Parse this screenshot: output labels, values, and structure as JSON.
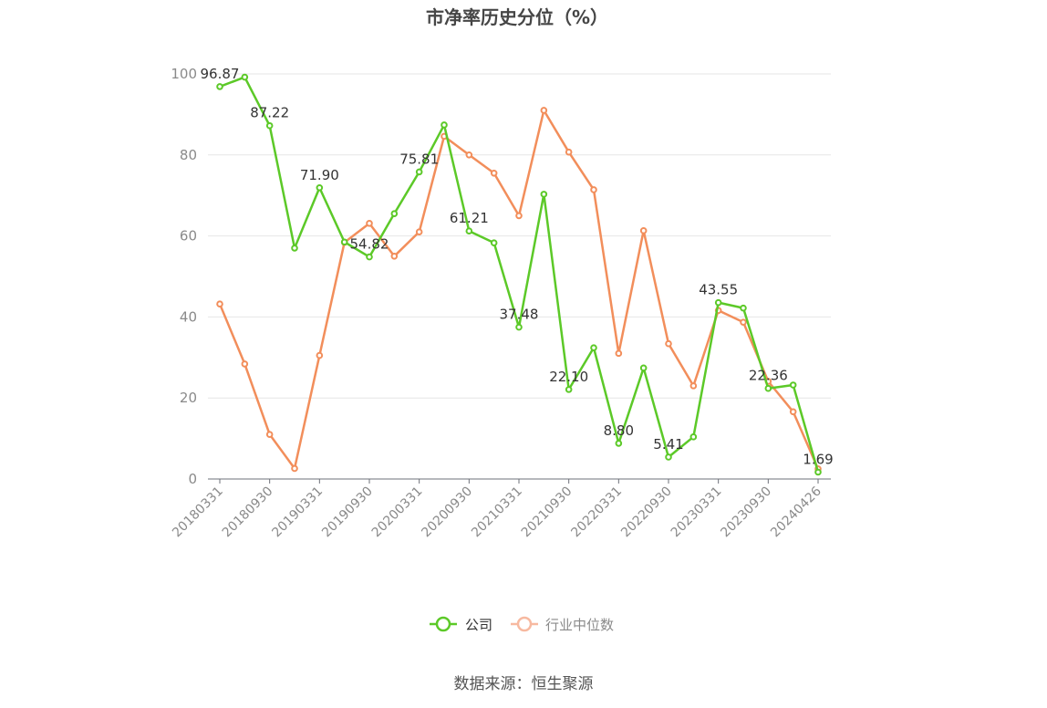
{
  "chart_data": {
    "type": "line",
    "title": "市净率历史分位（%）",
    "source": "数据来源：恒生聚源",
    "ylim": [
      0,
      100
    ],
    "yticks": [
      0,
      20,
      40,
      60,
      80,
      100
    ],
    "grid": true,
    "legend_position": "bottom-center",
    "x_tick_labels": [
      "20180331",
      "20180930",
      "20190331",
      "20190930",
      "20200331",
      "20200930",
      "20210331",
      "20210930",
      "20220331",
      "20220930",
      "20230331",
      "20230930",
      "20240426"
    ],
    "x": [
      "20180331",
      "20180630",
      "20180930",
      "20181231",
      "20190331",
      "20190630",
      "20190930",
      "20191231",
      "20200331",
      "20200630",
      "20200930",
      "20201231",
      "20210331",
      "20210630",
      "20210930",
      "20211231",
      "20220331",
      "20220630",
      "20220930",
      "20221231",
      "20230331",
      "20230630",
      "20230930",
      "20231231",
      "20240426"
    ],
    "series": [
      {
        "name": "公司",
        "color": "#5cc928",
        "values": [
          96.87,
          99.2,
          87.22,
          57.0,
          71.9,
          58.5,
          54.82,
          65.5,
          75.81,
          87.4,
          61.21,
          58.3,
          37.48,
          70.3,
          22.1,
          32.4,
          8.8,
          27.4,
          5.41,
          10.4,
          43.55,
          42.2,
          22.36,
          23.2,
          1.69
        ],
        "labels": [
          "96.87",
          "",
          "87.22",
          "",
          "71.90",
          "",
          "54.82",
          "",
          "75.81",
          "",
          "61.21",
          "",
          "37.48",
          "",
          "22.10",
          "",
          "8.80",
          "",
          "5.41",
          "",
          "43.55",
          "",
          "22.36",
          "",
          "1.69"
        ]
      },
      {
        "name": "行业中位数",
        "color": "#f28e5b",
        "values": [
          43.2,
          28.4,
          11.0,
          2.6,
          30.5,
          58.4,
          63.1,
          55.0,
          61.0,
          84.6,
          80.0,
          75.5,
          65.0,
          91.0,
          80.7,
          71.4,
          31.0,
          61.3,
          33.4,
          23.0,
          41.6,
          38.7,
          24.1,
          16.6,
          2.5
        ]
      }
    ]
  }
}
